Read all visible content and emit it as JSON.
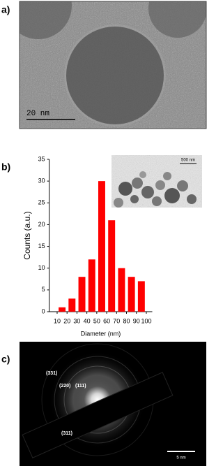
{
  "panels": {
    "a": {
      "label": "a)",
      "scale_bar": "20 nm"
    },
    "b": {
      "label": "b)",
      "inset_scale_bar": "500 nm"
    },
    "c": {
      "label": "c)",
      "reflections": [
        "(331)",
        "(220)",
        "(111)",
        "(311)"
      ],
      "scale_bar": "5 nm"
    }
  },
  "chart_data": {
    "type": "histogram",
    "x_label": "Diameter (nm)",
    "y_label": "Counts (a.u.)",
    "bins": [
      10,
      20,
      30,
      40,
      50,
      60,
      70,
      80,
      90,
      100
    ],
    "values": [
      1,
      3,
      8,
      12,
      30,
      21,
      10,
      8,
      7
    ],
    "color": "#ff0000",
    "xlim": [
      2,
      106
    ],
    "xticks": [
      10,
      20,
      30,
      40,
      50,
      60,
      70,
      80,
      90,
      100
    ],
    "ylim": [
      0,
      35
    ],
    "yticks": [
      0,
      5,
      10,
      15,
      20,
      25,
      30,
      35
    ]
  }
}
